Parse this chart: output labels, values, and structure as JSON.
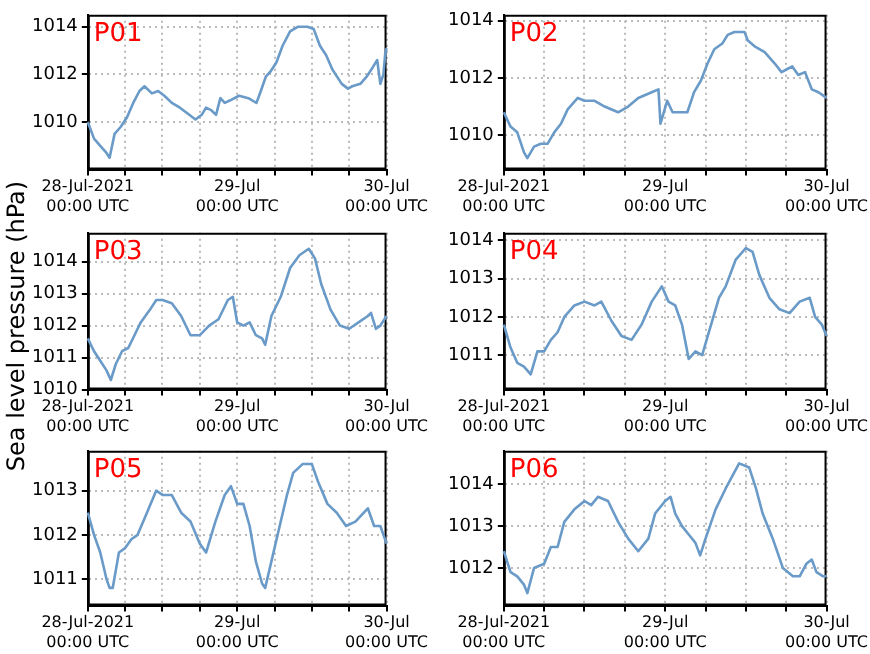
{
  "chart_data": [
    {
      "type": "line",
      "title": "P01",
      "color": "#6a9ac8",
      "marker": "none",
      "grid": true,
      "xlim": [
        "2021-07-28T00:00",
        "2021-07-30T00:00"
      ],
      "xticks": [
        {
          "value": "2021-07-28T00:00",
          "label": "28-Jul-2021\n00:00 UTC"
        },
        {
          "value": "2021-07-28T06:00",
          "label": null
        },
        {
          "value": "2021-07-28T12:00",
          "label": null
        },
        {
          "value": "2021-07-28T18:00",
          "label": null
        },
        {
          "value": "2021-07-29T00:00",
          "label": "29-Jul\n00:00 UTC"
        },
        {
          "value": "2021-07-29T06:00",
          "label": null
        },
        {
          "value": "2021-07-29T12:00",
          "label": null
        },
        {
          "value": "2021-07-29T18:00",
          "label": null
        },
        {
          "value": "2021-07-30T00:00",
          "label": "30-Jul\n00:00 UTC"
        }
      ],
      "ylim": [
        1008,
        1014.5
      ],
      "yticks": [
        1010,
        1012,
        1014
      ],
      "x": [
        "2021-07-28T00:00",
        "2021-07-28T01:00",
        "2021-07-28T02:00",
        "2021-07-28T03:00",
        "2021-07-28T03:30",
        "2021-07-28T04:18",
        "2021-07-28T05:18",
        "2021-07-28T06:18",
        "2021-07-28T07:18",
        "2021-07-28T08:18",
        "2021-07-28T09:06",
        "2021-07-28T10:18",
        "2021-07-28T11:18",
        "2021-07-28T12:18",
        "2021-07-28T13:30",
        "2021-07-28T14:48",
        "2021-07-28T16:18",
        "2021-07-28T17:18",
        "2021-07-28T18:18",
        "2021-07-28T19:00",
        "2021-07-28T19:48",
        "2021-07-28T20:36",
        "2021-07-28T21:18",
        "2021-07-28T22:00",
        "2021-07-28T22:48",
        "2021-07-29T00:18",
        "2021-07-29T01:48",
        "2021-07-29T03:06",
        "2021-07-29T03:48",
        "2021-07-29T04:36",
        "2021-07-29T05:18",
        "2021-07-29T06:18",
        "2021-07-29T07:18",
        "2021-07-29T08:30",
        "2021-07-29T09:48",
        "2021-07-29T11:18",
        "2021-07-29T12:18",
        "2021-07-29T13:18",
        "2021-07-29T14:18",
        "2021-07-29T15:18",
        "2021-07-29T16:48",
        "2021-07-29T17:48",
        "2021-07-29T18:30",
        "2021-07-29T19:48",
        "2021-07-29T20:48",
        "2021-07-29T21:48",
        "2021-07-29T22:30",
        "2021-07-29T23:00",
        "2021-07-29T23:30",
        "2021-07-29T23:48",
        "2021-07-30T00:00"
      ],
      "values": [
        1010.0,
        1009.3,
        1009.0,
        1008.7,
        1008.5,
        1009.5,
        1009.8,
        1010.2,
        1010.8,
        1011.3,
        1011.5,
        1011.2,
        1011.3,
        1011.1,
        1010.8,
        1010.6,
        1010.3,
        1010.1,
        1010.3,
        1010.6,
        1010.5,
        1010.3,
        1011.0,
        1010.8,
        1010.9,
        1011.1,
        1011.0,
        1010.8,
        1011.3,
        1011.9,
        1012.1,
        1012.5,
        1013.2,
        1013.8,
        1014.0,
        1014.0,
        1013.9,
        1013.2,
        1012.8,
        1012.2,
        1011.6,
        1011.4,
        1011.5,
        1011.6,
        1011.9,
        1012.3,
        1012.6,
        1011.6,
        1012.0,
        1012.9,
        1013.1
      ]
    },
    {
      "type": "line",
      "title": "P02",
      "color": "#6a9ac8",
      "marker": "none",
      "grid": true,
      "xlim": [
        "2021-07-28T00:00",
        "2021-07-30T00:00"
      ],
      "xticks": [
        {
          "value": "2021-07-28T00:00",
          "label": "28-Jul-2021\n00:00 UTC"
        },
        {
          "value": "2021-07-28T06:00",
          "label": null
        },
        {
          "value": "2021-07-28T12:00",
          "label": null
        },
        {
          "value": "2021-07-28T18:00",
          "label": null
        },
        {
          "value": "2021-07-29T00:00",
          "label": "29-Jul\n00:00 UTC"
        },
        {
          "value": "2021-07-29T06:00",
          "label": null
        },
        {
          "value": "2021-07-29T12:00",
          "label": null
        },
        {
          "value": "2021-07-29T18:00",
          "label": null
        },
        {
          "value": "2021-07-30T00:00",
          "label": "30-Jul\n00:00 UTC"
        }
      ],
      "ylim": [
        1008.8,
        1014.2
      ],
      "yticks": [
        1010,
        1012,
        1014
      ],
      "x": [
        "2021-07-28T00:00",
        "2021-07-28T01:00",
        "2021-07-28T02:00",
        "2021-07-28T03:00",
        "2021-07-28T03:30",
        "2021-07-28T04:30",
        "2021-07-28T05:30",
        "2021-07-28T06:30",
        "2021-07-28T07:30",
        "2021-07-28T08:30",
        "2021-07-28T09:30",
        "2021-07-28T11:00",
        "2021-07-28T12:00",
        "2021-07-28T13:30",
        "2021-07-28T15:00",
        "2021-07-28T17:00",
        "2021-07-28T18:30",
        "2021-07-28T20:00",
        "2021-07-28T22:00",
        "2021-07-28T23:00",
        "2021-07-28T23:18",
        "2021-07-29T00:18",
        "2021-07-29T01:06",
        "2021-07-29T02:18",
        "2021-07-29T03:18",
        "2021-07-29T04:18",
        "2021-07-29T05:18",
        "2021-07-29T06:18",
        "2021-07-29T07:18",
        "2021-07-29T08:30",
        "2021-07-29T09:18",
        "2021-07-29T10:18",
        "2021-07-29T11:48",
        "2021-07-29T12:18",
        "2021-07-29T13:18",
        "2021-07-29T14:48",
        "2021-07-29T16:18",
        "2021-07-29T17:18",
        "2021-07-29T18:06",
        "2021-07-29T18:54",
        "2021-07-29T19:48",
        "2021-07-29T20:48",
        "2021-07-29T21:48",
        "2021-07-29T22:48",
        "2021-07-30T00:00"
      ],
      "values": [
        1010.8,
        1010.3,
        1010.1,
        1009.4,
        1009.2,
        1009.6,
        1009.7,
        1009.7,
        1010.1,
        1010.4,
        1010.9,
        1011.3,
        1011.2,
        1011.2,
        1011.0,
        1010.8,
        1011.0,
        1011.3,
        1011.5,
        1011.6,
        1010.4,
        1011.2,
        1010.8,
        1010.8,
        1010.8,
        1011.5,
        1011.9,
        1012.5,
        1013.0,
        1013.2,
        1013.5,
        1013.6,
        1013.6,
        1013.3,
        1013.1,
        1012.9,
        1012.5,
        1012.2,
        1012.3,
        1012.4,
        1012.1,
        1012.2,
        1011.6,
        1011.5,
        1011.3
      ]
    },
    {
      "type": "line",
      "title": "P03",
      "ylabel": "Sea level pressure (hPa)",
      "color": "#6a9ac8",
      "marker": "none",
      "grid": true,
      "xlim": [
        "2021-07-28T00:00",
        "2021-07-30T00:00"
      ],
      "xticks": [
        {
          "value": "2021-07-28T00:00",
          "label": "28-Jul-2021\n00:00 UTC"
        },
        {
          "value": "2021-07-28T06:00",
          "label": null
        },
        {
          "value": "2021-07-28T12:00",
          "label": null
        },
        {
          "value": "2021-07-28T18:00",
          "label": null
        },
        {
          "value": "2021-07-29T00:00",
          "label": "29-Jul\n00:00 UTC"
        },
        {
          "value": "2021-07-29T06:00",
          "label": null
        },
        {
          "value": "2021-07-29T12:00",
          "label": null
        },
        {
          "value": "2021-07-29T18:00",
          "label": null
        },
        {
          "value": "2021-07-30T00:00",
          "label": "30-Jul\n00:00 UTC"
        }
      ],
      "ylim": [
        1010,
        1014.9
      ],
      "yticks": [
        1010,
        1011,
        1012,
        1013,
        1014
      ],
      "x": [
        "2021-07-28T00:00",
        "2021-07-28T01:00",
        "2021-07-28T02:00",
        "2021-07-28T03:00",
        "2021-07-28T03:42",
        "2021-07-28T04:30",
        "2021-07-28T05:30",
        "2021-07-28T06:30",
        "2021-07-28T07:30",
        "2021-07-28T08:30",
        "2021-07-28T10:00",
        "2021-07-28T11:00",
        "2021-07-28T12:00",
        "2021-07-28T13:30",
        "2021-07-28T15:00",
        "2021-07-28T16:30",
        "2021-07-28T18:00",
        "2021-07-28T19:30",
        "2021-07-28T21:00",
        "2021-07-28T22:30",
        "2021-07-28T23:18",
        "2021-07-29T00:00",
        "2021-07-29T01:00",
        "2021-07-29T02:00",
        "2021-07-29T03:00",
        "2021-07-29T04:00",
        "2021-07-29T04:30",
        "2021-07-29T05:30",
        "2021-07-29T07:00",
        "2021-07-29T08:30",
        "2021-07-29T10:00",
        "2021-07-29T11:30",
        "2021-07-29T12:30",
        "2021-07-29T13:30",
        "2021-07-29T15:00",
        "2021-07-29T16:30",
        "2021-07-29T18:00",
        "2021-07-29T19:30",
        "2021-07-29T21:00",
        "2021-07-29T21:30",
        "2021-07-29T22:18",
        "2021-07-29T23:00",
        "2021-07-30T00:00"
      ],
      "values": [
        1011.6,
        1011.2,
        1010.9,
        1010.6,
        1010.3,
        1010.8,
        1011.2,
        1011.3,
        1011.7,
        1012.1,
        1012.5,
        1012.8,
        1012.8,
        1012.7,
        1012.3,
        1011.7,
        1011.7,
        1012.0,
        1012.2,
        1012.8,
        1012.9,
        1012.1,
        1012.0,
        1012.1,
        1011.7,
        1011.6,
        1011.4,
        1012.3,
        1012.9,
        1013.8,
        1014.2,
        1014.4,
        1014.1,
        1013.3,
        1012.5,
        1012.0,
        1011.9,
        1012.1,
        1012.3,
        1012.4,
        1011.9,
        1012.0,
        1012.3
      ]
    },
    {
      "type": "line",
      "title": "P04",
      "color": "#6a9ac8",
      "marker": "none",
      "grid": true,
      "xlim": [
        "2021-07-28T00:00",
        "2021-07-30T00:00"
      ],
      "xticks": [
        {
          "value": "2021-07-28T00:00",
          "label": "28-Jul-2021\n00:00 UTC"
        },
        {
          "value": "2021-07-28T06:00",
          "label": null
        },
        {
          "value": "2021-07-28T12:00",
          "label": null
        },
        {
          "value": "2021-07-28T18:00",
          "label": null
        },
        {
          "value": "2021-07-29T00:00",
          "label": "29-Jul\n00:00 UTC"
        },
        {
          "value": "2021-07-29T06:00",
          "label": null
        },
        {
          "value": "2021-07-29T12:00",
          "label": null
        },
        {
          "value": "2021-07-29T18:00",
          "label": null
        },
        {
          "value": "2021-07-30T00:00",
          "label": "30-Jul\n00:00 UTC"
        }
      ],
      "ylim": [
        1010.1,
        1014.2
      ],
      "yticks": [
        1011,
        1012,
        1013,
        1014
      ],
      "x": [
        "2021-07-28T00:00",
        "2021-07-28T01:00",
        "2021-07-28T02:00",
        "2021-07-28T03:00",
        "2021-07-28T04:00",
        "2021-07-28T05:00",
        "2021-07-28T06:00",
        "2021-07-28T07:00",
        "2021-07-28T08:00",
        "2021-07-28T09:00",
        "2021-07-28T10:30",
        "2021-07-28T12:00",
        "2021-07-28T13:30",
        "2021-07-28T14:30",
        "2021-07-28T16:00",
        "2021-07-28T17:30",
        "2021-07-28T19:00",
        "2021-07-28T20:30",
        "2021-07-28T22:00",
        "2021-07-28T23:30",
        "2021-07-29T00:30",
        "2021-07-29T01:30",
        "2021-07-29T02:30",
        "2021-07-29T03:30",
        "2021-07-29T04:30",
        "2021-07-29T05:30",
        "2021-07-29T06:30",
        "2021-07-29T08:00",
        "2021-07-29T09:00",
        "2021-07-29T10:30",
        "2021-07-29T12:00",
        "2021-07-29T13:00",
        "2021-07-29T14:00",
        "2021-07-29T15:30",
        "2021-07-29T17:00",
        "2021-07-29T18:30",
        "2021-07-29T20:00",
        "2021-07-29T21:30",
        "2021-07-29T22:18",
        "2021-07-29T23:18",
        "2021-07-30T00:00"
      ],
      "values": [
        1011.8,
        1011.2,
        1010.8,
        1010.7,
        1010.5,
        1011.1,
        1011.1,
        1011.4,
        1011.6,
        1012.0,
        1012.3,
        1012.4,
        1012.3,
        1012.4,
        1011.9,
        1011.5,
        1011.4,
        1011.8,
        1012.4,
        1012.8,
        1012.4,
        1012.3,
        1011.8,
        1010.9,
        1011.1,
        1011.0,
        1011.6,
        1012.5,
        1012.8,
        1013.5,
        1013.8,
        1013.7,
        1013.1,
        1012.5,
        1012.2,
        1012.1,
        1012.4,
        1012.5,
        1012.0,
        1011.8,
        1011.5
      ]
    },
    {
      "type": "line",
      "title": "P05",
      "color": "#6a9ac8",
      "marker": "none",
      "grid": true,
      "xlim": [
        "2021-07-28T00:00",
        "2021-07-30T00:00"
      ],
      "xticks": [
        {
          "value": "2021-07-28T00:00",
          "label": "28-Jul-2021\n00:00 UTC"
        },
        {
          "value": "2021-07-28T06:00",
          "label": null
        },
        {
          "value": "2021-07-28T12:00",
          "label": null
        },
        {
          "value": "2021-07-28T18:00",
          "label": null
        },
        {
          "value": "2021-07-29T00:00",
          "label": "29-Jul\n00:00 UTC"
        },
        {
          "value": "2021-07-29T06:00",
          "label": null
        },
        {
          "value": "2021-07-29T12:00",
          "label": null
        },
        {
          "value": "2021-07-29T18:00",
          "label": null
        },
        {
          "value": "2021-07-30T00:00",
          "label": "30-Jul\n00:00 UTC"
        }
      ],
      "ylim": [
        1010.4,
        1013.9
      ],
      "yticks": [
        1011,
        1012,
        1013
      ],
      "x": [
        "2021-07-28T00:00",
        "2021-07-28T01:00",
        "2021-07-28T02:00",
        "2021-07-28T03:00",
        "2021-07-28T03:30",
        "2021-07-28T04:00",
        "2021-07-28T05:00",
        "2021-07-28T06:00",
        "2021-07-28T07:00",
        "2021-07-28T08:00",
        "2021-07-28T09:30",
        "2021-07-28T11:00",
        "2021-07-28T12:00",
        "2021-07-28T13:30",
        "2021-07-28T15:00",
        "2021-07-28T16:30",
        "2021-07-28T18:00",
        "2021-07-28T19:00",
        "2021-07-28T20:30",
        "2021-07-28T22:00",
        "2021-07-28T23:00",
        "2021-07-29T00:00",
        "2021-07-29T01:00",
        "2021-07-29T02:00",
        "2021-07-29T03:00",
        "2021-07-29T04:00",
        "2021-07-29T04:30",
        "2021-07-29T05:30",
        "2021-07-29T07:00",
        "2021-07-29T08:00",
        "2021-07-29T09:00",
        "2021-07-29T10:30",
        "2021-07-29T12:00",
        "2021-07-29T13:00",
        "2021-07-29T14:30",
        "2021-07-29T16:00",
        "2021-07-29T17:30",
        "2021-07-29T19:00",
        "2021-07-29T21:00",
        "2021-07-29T22:00",
        "2021-07-29T23:00",
        "2021-07-30T00:00"
      ],
      "values": [
        1012.5,
        1012.0,
        1011.6,
        1011.0,
        1010.8,
        1010.8,
        1011.6,
        1011.7,
        1011.9,
        1012.0,
        1012.5,
        1013.0,
        1012.9,
        1012.9,
        1012.5,
        1012.3,
        1011.8,
        1011.6,
        1012.3,
        1012.9,
        1013.1,
        1012.7,
        1012.7,
        1012.2,
        1011.4,
        1010.9,
        1010.8,
        1011.4,
        1012.3,
        1012.9,
        1013.4,
        1013.6,
        1013.6,
        1013.2,
        1012.7,
        1012.5,
        1012.2,
        1012.3,
        1012.6,
        1012.2,
        1012.2,
        1011.8
      ]
    },
    {
      "type": "line",
      "title": "P06",
      "color": "#6a9ac8",
      "marker": "none",
      "grid": true,
      "xlim": [
        "2021-07-28T00:00",
        "2021-07-30T00:00"
      ],
      "xticks": [
        {
          "value": "2021-07-28T00:00",
          "label": "28-Jul-2021\n00:00 UTC"
        },
        {
          "value": "2021-07-28T06:00",
          "label": null
        },
        {
          "value": "2021-07-28T12:00",
          "label": null
        },
        {
          "value": "2021-07-28T18:00",
          "label": null
        },
        {
          "value": "2021-07-29T00:00",
          "label": "29-Jul\n00:00 UTC"
        },
        {
          "value": "2021-07-29T06:00",
          "label": null
        },
        {
          "value": "2021-07-29T12:00",
          "label": null
        },
        {
          "value": "2021-07-29T18:00",
          "label": null
        },
        {
          "value": "2021-07-30T00:00",
          "label": "30-Jul\n00:00 UTC"
        }
      ],
      "ylim": [
        1011.1,
        1014.8
      ],
      "yticks": [
        1012,
        1013,
        1014
      ],
      "x": [
        "2021-07-28T00:00",
        "2021-07-28T01:00",
        "2021-07-28T02:00",
        "2021-07-28T03:00",
        "2021-07-28T03:30",
        "2021-07-28T04:30",
        "2021-07-28T06:00",
        "2021-07-28T07:00",
        "2021-07-28T08:00",
        "2021-07-28T09:00",
        "2021-07-28T10:30",
        "2021-07-28T12:00",
        "2021-07-28T13:00",
        "2021-07-28T14:00",
        "2021-07-28T15:30",
        "2021-07-28T17:00",
        "2021-07-28T18:30",
        "2021-07-28T20:00",
        "2021-07-28T21:30",
        "2021-07-28T22:30",
        "2021-07-29T00:00",
        "2021-07-29T00:48",
        "2021-07-29T01:30",
        "2021-07-29T02:30",
        "2021-07-29T03:30",
        "2021-07-29T04:30",
        "2021-07-29T05:12",
        "2021-07-29T06:00",
        "2021-07-29T07:30",
        "2021-07-29T09:00",
        "2021-07-29T10:00",
        "2021-07-29T11:00",
        "2021-07-29T12:30",
        "2021-07-29T13:30",
        "2021-07-29T14:30",
        "2021-07-29T16:00",
        "2021-07-29T17:30",
        "2021-07-29T19:00",
        "2021-07-29T20:00",
        "2021-07-29T21:00",
        "2021-07-29T21:48",
        "2021-07-29T22:30",
        "2021-07-29T23:30",
        "2021-07-30T00:00"
      ],
      "values": [
        1012.4,
        1011.9,
        1011.8,
        1011.6,
        1011.4,
        1012.0,
        1012.1,
        1012.5,
        1012.5,
        1013.1,
        1013.4,
        1013.6,
        1013.5,
        1013.7,
        1013.6,
        1013.1,
        1012.7,
        1012.4,
        1012.7,
        1013.3,
        1013.6,
        1013.7,
        1013.3,
        1013.0,
        1012.8,
        1012.6,
        1012.3,
        1012.7,
        1013.4,
        1013.9,
        1014.2,
        1014.5,
        1014.4,
        1013.9,
        1013.3,
        1012.7,
        1012.0,
        1011.8,
        1011.8,
        1012.1,
        1012.2,
        1011.9,
        1011.8,
        1011.8
      ]
    }
  ]
}
